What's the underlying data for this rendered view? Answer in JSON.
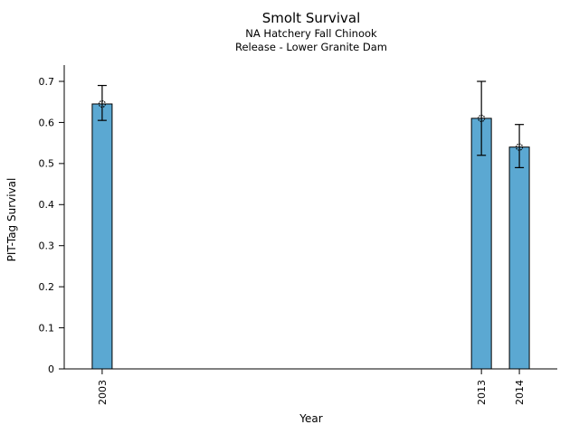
{
  "chart_data": {
    "type": "bar",
    "title": "Smolt Survival",
    "subtitle1": "NA Hatchery Fall Chinook",
    "subtitle2": "Release - Lower Granite Dam",
    "xlabel": "Year",
    "ylabel": "PIT-Tag Survival",
    "x": [
      2003,
      2013,
      2014
    ],
    "categories": [
      "2003",
      "2013",
      "2014"
    ],
    "values": [
      0.645,
      0.61,
      0.54
    ],
    "error_low": [
      0.605,
      0.52,
      0.49
    ],
    "error_high": [
      0.69,
      0.7,
      0.595
    ],
    "xlim": [
      2002,
      2015
    ],
    "ylim": [
      0,
      0.7
    ],
    "yticks": [
      0,
      0.1,
      0.2,
      0.3,
      0.4,
      0.5,
      0.6,
      0.7
    ],
    "ytick_labels": [
      "0",
      "0.1",
      "0.2",
      "0.3",
      "0.4",
      "0.5",
      "0.6",
      "0.7"
    ],
    "bar_color": "#5BA8D2",
    "bar_edge_color": "#000000",
    "error_bar_color": "#000000",
    "marker": "open-circle",
    "grid": false,
    "legend": false,
    "background": "#FFFFFF"
  }
}
